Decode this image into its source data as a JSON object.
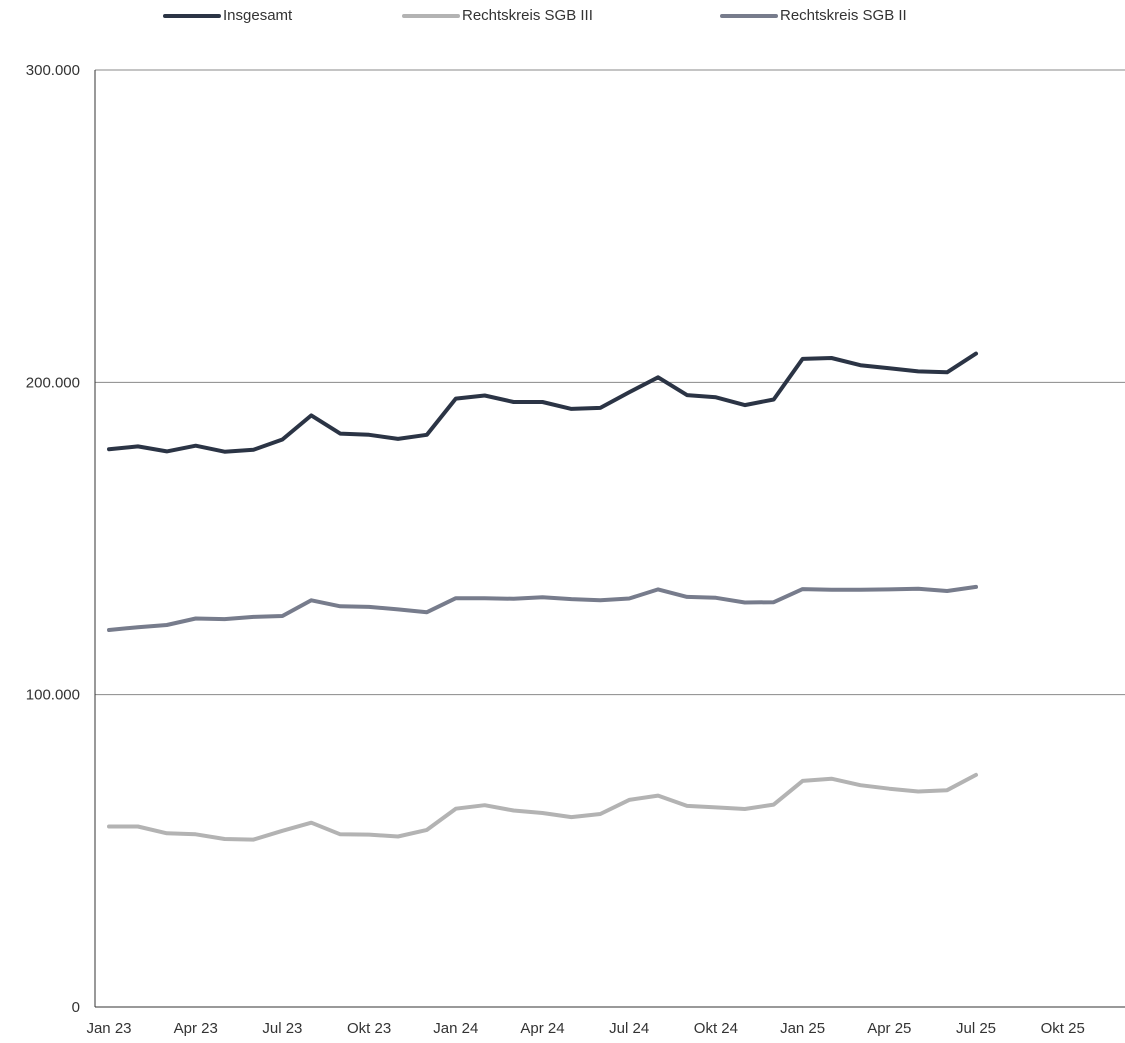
{
  "chart_data": {
    "type": "line",
    "title": "",
    "xlabel": "",
    "ylabel": "",
    "ylim": [
      0,
      300000
    ],
    "y_ticks": [
      0,
      100000,
      200000,
      300000
    ],
    "y_tick_labels": [
      "0",
      "100.000",
      "200.000",
      "300.000"
    ],
    "x_tick_labels": [
      "Jan 23",
      "Apr 23",
      "Jul 23",
      "Okt 23",
      "Jan 24",
      "Apr 24",
      "Jul 24",
      "Okt 24",
      "Jan 25",
      "Apr 25",
      "Jul 25",
      "Okt 25"
    ],
    "x_axis_months": 33,
    "grid": "horizontal",
    "legend_position": "top",
    "series": [
      {
        "name": "Insgesamt",
        "color": "#2b3445",
        "values": [
          178600,
          179500,
          177900,
          179700,
          177800,
          178400,
          181700,
          189400,
          183600,
          183200,
          181900,
          183200,
          194800,
          195800,
          193700,
          193700,
          191500,
          191800,
          196800,
          201600,
          195900,
          195200,
          192700,
          194500,
          207500,
          207800,
          205500,
          204500,
          203500,
          203200,
          209200
        ]
      },
      {
        "name": "Rechtskreis SGB III",
        "color": "#b3b3b3",
        "values": [
          57800,
          57800,
          55600,
          55300,
          53800,
          53600,
          56400,
          59000,
          55300,
          55200,
          54600,
          56700,
          63500,
          64600,
          62900,
          62100,
          60800,
          61800,
          66300,
          67700,
          64400,
          63900,
          63400,
          64800,
          72400,
          73100,
          71000,
          69900,
          69000,
          69400,
          74300
        ]
      },
      {
        "name": "Rechtskreis SGB II",
        "color": "#777c8c",
        "values": [
          120700,
          121600,
          122300,
          124400,
          124200,
          124900,
          125200,
          130200,
          128300,
          128100,
          127300,
          126400,
          130900,
          130900,
          130700,
          131200,
          130600,
          130200,
          130800,
          133700,
          131300,
          131000,
          129500,
          129600,
          133800,
          133600,
          133600,
          133700,
          133900,
          133200,
          134500
        ]
      }
    ]
  }
}
